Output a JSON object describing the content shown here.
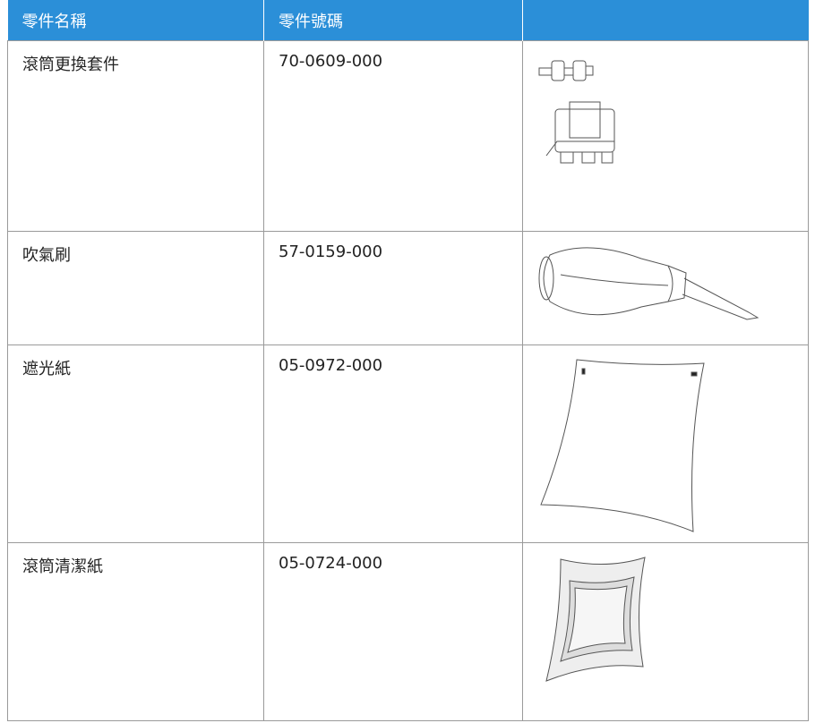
{
  "table": {
    "header": [
      "零件名稱",
      "零件號碼"
    ],
    "rows": [
      [
        "滾筒更換套件",
        "70-0609-000"
      ],
      [
        "吹氣刷",
        "57-0159-000"
      ],
      [
        "遮光紙",
        "05-0972-000"
      ],
      [
        "滾筒清潔紙",
        "05-0724-000"
      ]
    ]
  }
}
